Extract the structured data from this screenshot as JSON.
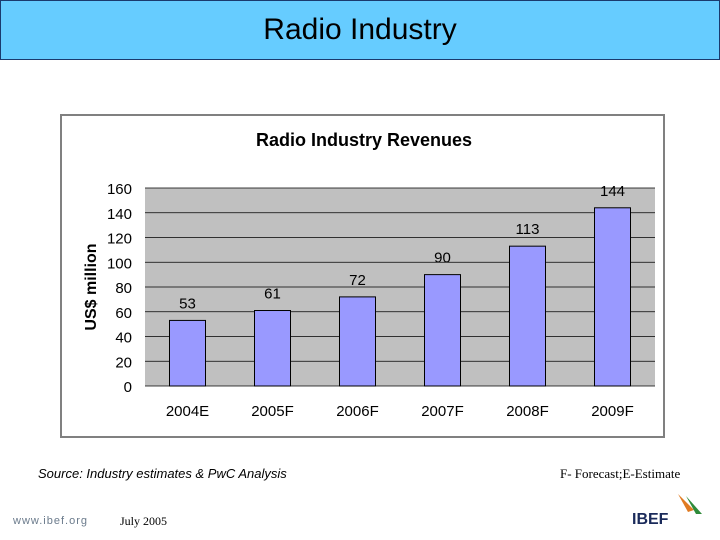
{
  "slide": {
    "title": "Radio Industry",
    "source": "Source: Industry estimates & PwC Analysis",
    "note": "F- Forecast;E-Estimate",
    "footer_url": "www.ibef.org",
    "footer_date": "July 2005",
    "logo_text": "IBEF"
  },
  "colors": {
    "title_bar": "#66ccff",
    "bar_fill": "#9999ff",
    "plot_bg": "#c0c0c0"
  },
  "chart_data": {
    "type": "bar",
    "title": "Radio Industry Revenues",
    "xlabel": "",
    "ylabel": "US$ million",
    "categories": [
      "2004E",
      "2005F",
      "2006F",
      "2007F",
      "2008F",
      "2009F"
    ],
    "values": [
      53,
      61,
      72,
      90,
      113,
      144
    ],
    "ylim": [
      0,
      160
    ],
    "yticks": [
      0,
      20,
      40,
      60,
      80,
      100,
      120,
      140,
      160
    ],
    "grid": true,
    "legend": "none"
  }
}
